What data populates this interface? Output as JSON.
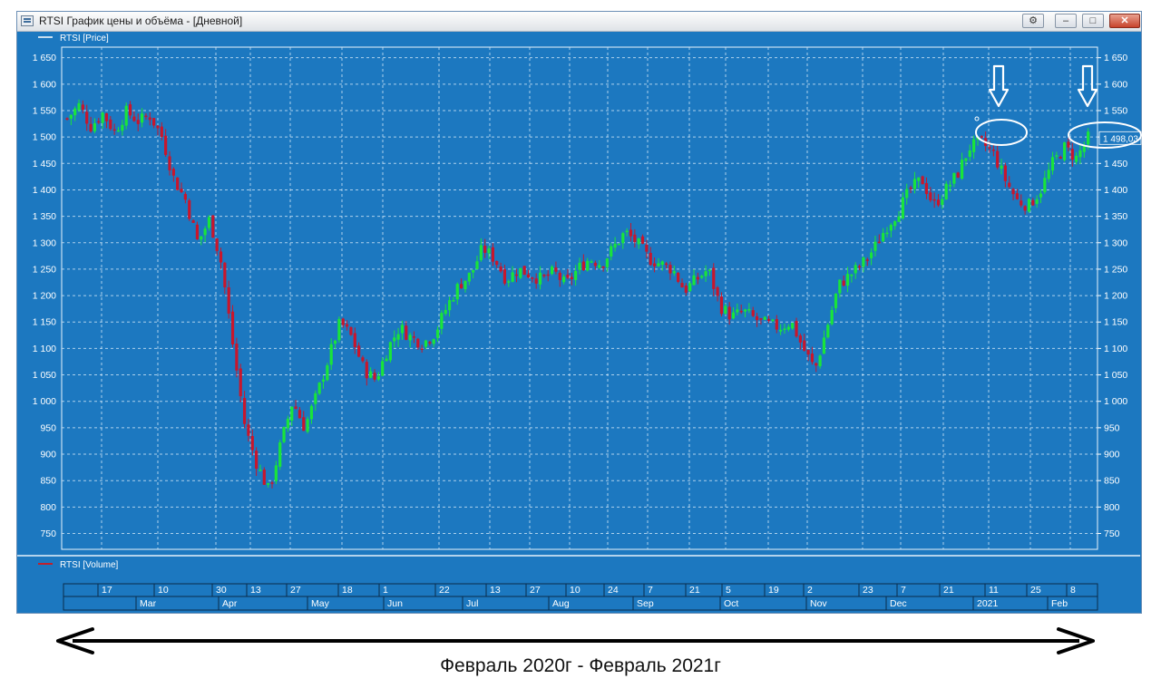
{
  "window": {
    "title": "RTSI График цены и объёма - [Дневной]",
    "buttons": {
      "minimize": "–",
      "maximize": "□",
      "close": "✕"
    }
  },
  "caption": "Февраль 2020г - Февраль 2021г",
  "colors": {
    "background": "#1c78c0",
    "up": "#19e43a",
    "down": "#c8162c",
    "grid": "#cfe6f7",
    "text": "#ffffff"
  },
  "chart_data": [
    {
      "type": "candlestick",
      "legend": "RTSI [Price]",
      "last_price_label": "1 498,03",
      "ylim": [
        720,
        1670
      ],
      "y_ticks": [
        750,
        800,
        850,
        900,
        950,
        1000,
        1050,
        1100,
        1150,
        1200,
        1250,
        1300,
        1350,
        1400,
        1450,
        1500,
        1550,
        1600,
        1650
      ],
      "y_tick_labels": [
        "750",
        "800",
        "850",
        "900",
        "950",
        "1 000",
        "1 050",
        "1 100",
        "1 150",
        "1 200",
        "1 250",
        "1 300",
        "1 350",
        "1 400",
        "1 450",
        "1 500",
        "1 550",
        "1 600",
        "1 650"
      ],
      "x_ticks_top": [
        "17",
        "10",
        "30",
        "13",
        "27",
        "18",
        "1",
        "22",
        "13",
        "27",
        "10",
        "24",
        "7",
        "21",
        "5",
        "19",
        "2",
        "23",
        "7",
        "21",
        "11",
        "25",
        "8"
      ],
      "x_ticks_bottom": [
        "Mar",
        "Apr",
        "May",
        "Jun",
        "Jul",
        "Aug",
        "Sep",
        "Oct",
        "Nov",
        "Dec",
        "2021",
        "Feb"
      ],
      "grid": true,
      "price_path": [
        1535,
        1560,
        1520,
        1545,
        1510,
        1548,
        1530,
        1540,
        1500,
        1420,
        1380,
        1300,
        1345,
        1260,
        1100,
        950,
        880,
        830,
        920,
        1000,
        950,
        1010,
        1080,
        1150,
        1120,
        1060,
        1040,
        1100,
        1140,
        1120,
        1110,
        1130,
        1180,
        1220,
        1240,
        1290,
        1270,
        1230,
        1250,
        1240,
        1230,
        1245,
        1220,
        1250,
        1270,
        1260,
        1290,
        1320,
        1300,
        1270,
        1260,
        1250,
        1210,
        1230,
        1250,
        1180,
        1160,
        1170,
        1155,
        1145,
        1140,
        1150,
        1100,
        1060,
        1140,
        1220,
        1240,
        1260,
        1290,
        1330,
        1360,
        1400,
        1420,
        1370,
        1400,
        1430,
        1480,
        1490,
        1470,
        1420,
        1380,
        1370,
        1400,
        1450,
        1480,
        1460,
        1498
      ],
      "annotations": [
        "down-arrow-1",
        "down-arrow-2",
        "ellipse-1",
        "ellipse-2"
      ]
    },
    {
      "type": "bar",
      "legend": "RTSI [Volume]",
      "values": []
    }
  ]
}
